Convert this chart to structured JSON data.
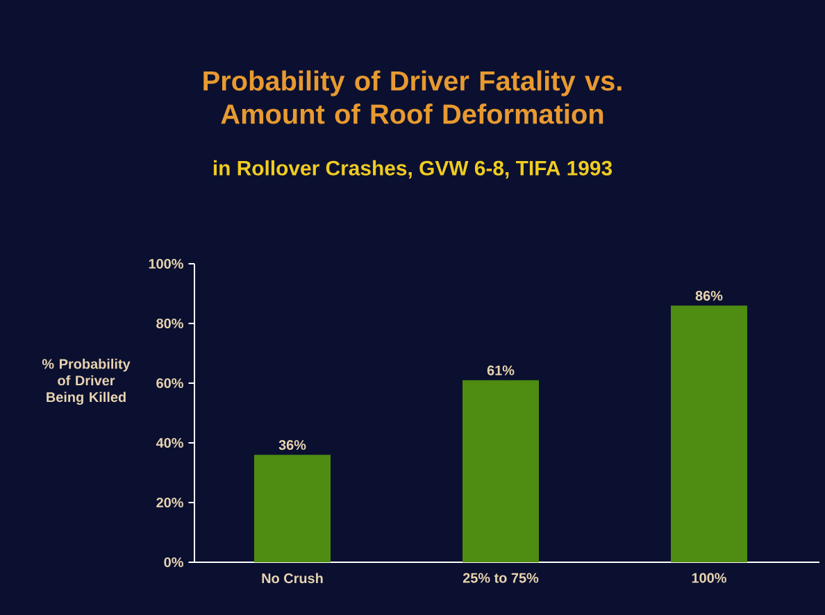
{
  "chart_data": {
    "type": "bar",
    "title": "Probability of Driver Fatality vs. Amount of Roof Deformation",
    "subtitle": "in Rollover Crashes, GVW 6-8, TIFA 1993",
    "ylabel": "% Probability of Driver Being Killed",
    "categories": [
      "No Crush",
      "25% to 75%",
      "100%"
    ],
    "values": [
      36,
      61,
      86
    ],
    "color": "#4e8c12",
    "value_labels": [
      "36%",
      "61%",
      "86%"
    ],
    "ylim": [
      0,
      100
    ],
    "yticks": [
      {
        "value": 0,
        "label": "0%"
      },
      {
        "value": 20,
        "label": "20%"
      },
      {
        "value": 40,
        "label": "40%"
      },
      {
        "value": 60,
        "label": "60%"
      },
      {
        "value": 80,
        "label": "80%"
      },
      {
        "value": 100,
        "label": "100%"
      }
    ],
    "grid": false
  }
}
